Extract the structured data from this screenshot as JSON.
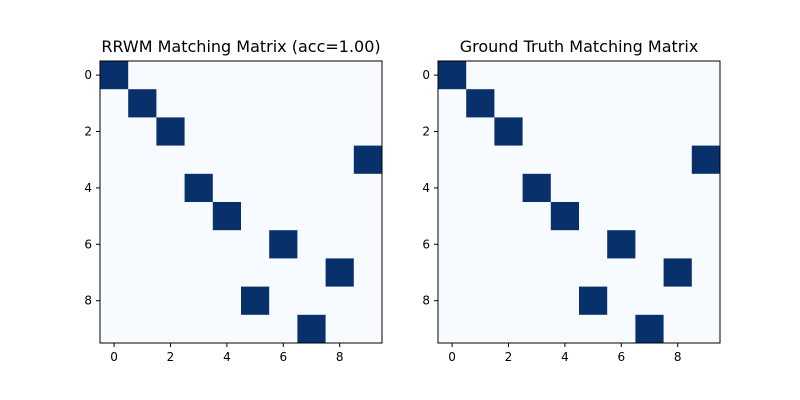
{
  "chart_data": [
    {
      "type": "heatmap",
      "title": "RRWM Matching Matrix (acc=1.00)",
      "xlabel": "",
      "ylabel": "",
      "rows": 10,
      "cols": 10,
      "xticks": [
        0,
        2,
        4,
        6,
        8
      ],
      "yticks": [
        0,
        2,
        4,
        6,
        8
      ],
      "xlim": [
        -0.5,
        9.5
      ],
      "ylim": [
        9.5,
        -0.5
      ],
      "colormap": [
        "#f7fbff",
        "#08306b"
      ],
      "value_range": [
        0,
        1
      ],
      "values": [
        [
          1,
          0,
          0,
          0,
          0,
          0,
          0,
          0,
          0,
          0
        ],
        [
          0,
          1,
          0,
          0,
          0,
          0,
          0,
          0,
          0,
          0
        ],
        [
          0,
          0,
          1,
          0,
          0,
          0,
          0,
          0,
          0,
          0
        ],
        [
          0,
          0,
          0,
          0,
          0,
          0,
          0,
          0,
          0,
          1
        ],
        [
          0,
          0,
          0,
          1,
          0,
          0,
          0,
          0,
          0,
          0
        ],
        [
          0,
          0,
          0,
          0,
          1,
          0,
          0,
          0,
          0,
          0
        ],
        [
          0,
          0,
          0,
          0,
          0,
          0,
          1,
          0,
          0,
          0
        ],
        [
          0,
          0,
          0,
          0,
          0,
          0,
          0,
          0,
          1,
          0
        ],
        [
          0,
          0,
          0,
          0,
          0,
          1,
          0,
          0,
          0,
          0
        ],
        [
          0,
          0,
          0,
          0,
          0,
          0,
          0,
          1,
          0,
          0
        ]
      ]
    },
    {
      "type": "heatmap",
      "title": "Ground Truth Matching Matrix",
      "xlabel": "",
      "ylabel": "",
      "rows": 10,
      "cols": 10,
      "xticks": [
        0,
        2,
        4,
        6,
        8
      ],
      "yticks": [
        0,
        2,
        4,
        6,
        8
      ],
      "xlim": [
        -0.5,
        9.5
      ],
      "ylim": [
        9.5,
        -0.5
      ],
      "colormap": [
        "#f7fbff",
        "#08306b"
      ],
      "value_range": [
        0,
        1
      ],
      "values": [
        [
          1,
          0,
          0,
          0,
          0,
          0,
          0,
          0,
          0,
          0
        ],
        [
          0,
          1,
          0,
          0,
          0,
          0,
          0,
          0,
          0,
          0
        ],
        [
          0,
          0,
          1,
          0,
          0,
          0,
          0,
          0,
          0,
          0
        ],
        [
          0,
          0,
          0,
          0,
          0,
          0,
          0,
          0,
          0,
          1
        ],
        [
          0,
          0,
          0,
          1,
          0,
          0,
          0,
          0,
          0,
          0
        ],
        [
          0,
          0,
          0,
          0,
          1,
          0,
          0,
          0,
          0,
          0
        ],
        [
          0,
          0,
          0,
          0,
          0,
          0,
          1,
          0,
          0,
          0
        ],
        [
          0,
          0,
          0,
          0,
          0,
          0,
          0,
          0,
          1,
          0
        ],
        [
          0,
          0,
          0,
          0,
          0,
          1,
          0,
          0,
          0,
          0
        ],
        [
          0,
          0,
          0,
          0,
          0,
          0,
          0,
          1,
          0,
          0
        ]
      ]
    }
  ]
}
